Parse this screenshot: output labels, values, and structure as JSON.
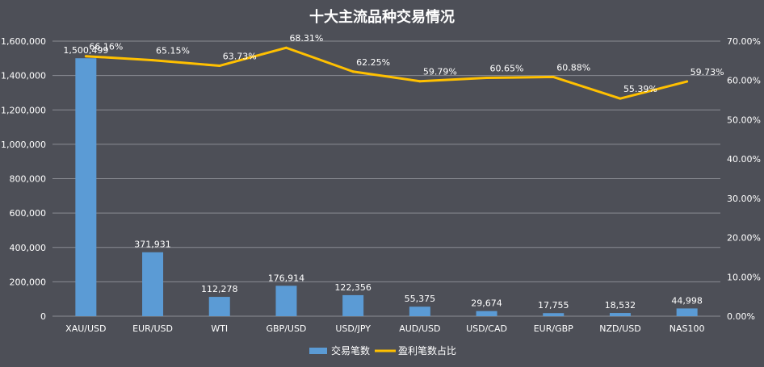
{
  "chart_data": {
    "type": "bar",
    "title": "十大主流品种交易情况",
    "categories": [
      "XAU/USD",
      "EUR/USD",
      "WTI",
      "GBP/USD",
      "USD/JPY",
      "AUD/USD",
      "USD/CAD",
      "EUR/GBP",
      "NZD/USD",
      "NAS100"
    ],
    "series": [
      {
        "name": "交易笔数",
        "type": "bar",
        "axis": "left",
        "values": [
          1500499,
          371931,
          112278,
          176914,
          122356,
          55375,
          29674,
          17755,
          18532,
          44998
        ],
        "labels": [
          "1,500,499",
          "371,931",
          "112,278",
          "176,914",
          "122,356",
          "55,375",
          "29,674",
          "17,755",
          "18,532",
          "44,998"
        ],
        "color": "#5b9bd5"
      },
      {
        "name": "盈利笔数占比",
        "type": "line",
        "axis": "right",
        "values": [
          66.16,
          65.15,
          63.73,
          68.31,
          62.25,
          59.79,
          60.65,
          60.88,
          55.39,
          59.73
        ],
        "labels": [
          "66.16%",
          "65.15%",
          "63.73%",
          "68.31%",
          "62.25%",
          "59.79%",
          "60.65%",
          "60.88%",
          "55.39%",
          "59.73%"
        ],
        "color": "#ffc000"
      }
    ],
    "ylim_left": [
      0,
      1600000
    ],
    "yticks_left": [
      "0",
      "200,000",
      "400,000",
      "600,000",
      "800,000",
      "1,000,000",
      "1,200,000",
      "1,400,000",
      "1,600,000"
    ],
    "ylim_right": [
      0,
      70
    ],
    "yticks_right": [
      "0.00%",
      "10.00%",
      "20.00%",
      "30.00%",
      "40.00%",
      "50.00%",
      "60.00%",
      "70.00%"
    ],
    "grid": true,
    "legend": "bottom"
  }
}
